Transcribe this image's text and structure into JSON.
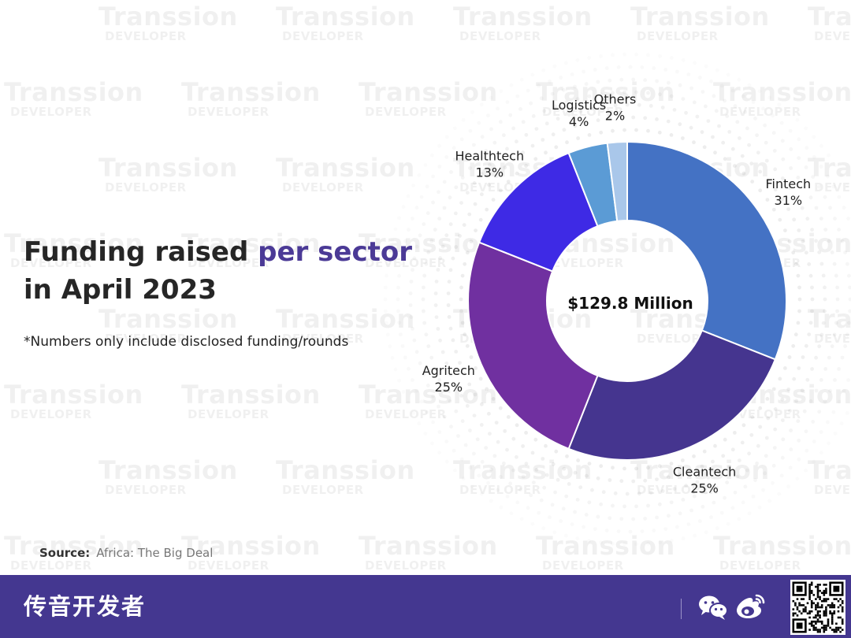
{
  "title": {
    "part1": "Funding raised ",
    "accent": "per sector",
    "part2": "in April 2023"
  },
  "footnote": "*Numbers only include disclosed funding/rounds",
  "source": {
    "label": "Source:",
    "value": "Africa: The Big Deal"
  },
  "watermark": {
    "line1": "Transsion",
    "line2": "DEVELOPER"
  },
  "footer": {
    "brand": "传音开发者"
  },
  "colors": {
    "footer_bg": "#443790",
    "accent": "#4b3a96"
  },
  "chart_data": {
    "type": "pie",
    "donut": true,
    "center_label": "$129.8 Million",
    "slices": [
      {
        "name": "Fintech",
        "value": 31,
        "label": "31%",
        "color": "#4472c4"
      },
      {
        "name": "Cleantech",
        "value": 25,
        "label": "25%",
        "color": "#45358f"
      },
      {
        "name": "Agritech",
        "value": 25,
        "label": "25%",
        "color": "#7030a0"
      },
      {
        "name": "Healthtech",
        "value": 13,
        "label": "13%",
        "color": "#3e2ae5"
      },
      {
        "name": "Logistics",
        "value": 4,
        "label": "4%",
        "color": "#5b9bd5"
      },
      {
        "name": "Others",
        "value": 2,
        "label": "2%",
        "color": "#a9c7ea"
      }
    ]
  }
}
